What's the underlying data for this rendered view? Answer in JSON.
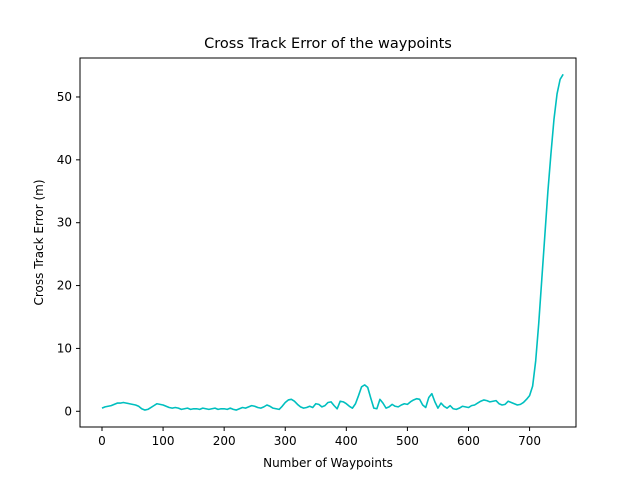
{
  "chart_data": {
    "type": "line",
    "title": "Cross Track Error of the waypoints",
    "xlabel": "Number of Waypoints",
    "ylabel": "Cross Track Error (m)",
    "xlim": [
      -36,
      776
    ],
    "ylim": [
      -2.5,
      56.2
    ],
    "xticks": [
      0,
      100,
      200,
      300,
      400,
      500,
      600,
      700
    ],
    "yticks": [
      0,
      10,
      20,
      30,
      40,
      50
    ],
    "grid": false,
    "line_color": "#00bfbf",
    "series": [
      {
        "x": [
          0,
          5,
          10,
          15,
          20,
          25,
          30,
          35,
          40,
          45,
          50,
          55,
          60,
          65,
          70,
          75,
          80,
          85,
          90,
          95,
          100,
          105,
          110,
          115,
          120,
          125,
          130,
          135,
          140,
          145,
          150,
          155,
          160,
          165,
          170,
          175,
          180,
          185,
          190,
          195,
          200,
          205,
          210,
          215,
          220,
          225,
          230,
          235,
          240,
          245,
          250,
          255,
          260,
          265,
          270,
          275,
          280,
          285,
          290,
          295,
          300,
          305,
          310,
          315,
          320,
          325,
          330,
          335,
          340,
          345,
          350,
          355,
          360,
          365,
          370,
          375,
          380,
          385,
          390,
          395,
          400,
          405,
          410,
          415,
          420,
          425,
          430,
          435,
          440,
          445,
          450,
          455,
          460,
          465,
          470,
          475,
          480,
          485,
          490,
          495,
          500,
          505,
          510,
          515,
          520,
          525,
          530,
          535,
          540,
          545,
          550,
          555,
          560,
          565,
          570,
          575,
          580,
          585,
          590,
          595,
          600,
          605,
          610,
          615,
          620,
          625,
          630,
          635,
          640,
          645,
          650,
          655,
          660,
          665,
          670,
          675,
          680,
          685,
          690,
          695,
          700,
          705,
          710,
          715,
          720,
          725,
          730,
          735,
          740,
          745,
          750,
          755
        ],
        "y": [
          0.5,
          0.7,
          0.8,
          0.9,
          1.1,
          1.3,
          1.3,
          1.4,
          1.3,
          1.2,
          1.1,
          1.0,
          0.8,
          0.4,
          0.2,
          0.3,
          0.6,
          0.9,
          1.2,
          1.1,
          1.0,
          0.8,
          0.6,
          0.5,
          0.6,
          0.5,
          0.3,
          0.4,
          0.5,
          0.3,
          0.4,
          0.4,
          0.3,
          0.5,
          0.4,
          0.3,
          0.4,
          0.5,
          0.3,
          0.4,
          0.4,
          0.3,
          0.5,
          0.3,
          0.2,
          0.4,
          0.6,
          0.5,
          0.7,
          0.9,
          0.8,
          0.6,
          0.5,
          0.7,
          1.0,
          0.8,
          0.5,
          0.4,
          0.3,
          0.8,
          1.4,
          1.8,
          1.9,
          1.6,
          1.1,
          0.7,
          0.5,
          0.6,
          0.8,
          0.6,
          1.2,
          1.1,
          0.7,
          0.9,
          1.4,
          1.5,
          0.9,
          0.4,
          1.6,
          1.5,
          1.2,
          0.8,
          0.5,
          1.2,
          2.5,
          3.9,
          4.2,
          3.8,
          2.1,
          0.5,
          0.4,
          1.9,
          1.3,
          0.5,
          0.7,
          1.1,
          0.8,
          0.7,
          1.0,
          1.2,
          1.1,
          1.5,
          1.8,
          2.0,
          1.9,
          1.0,
          0.6,
          2.2,
          2.8,
          1.5,
          0.5,
          1.3,
          0.8,
          0.5,
          0.9,
          0.4,
          0.3,
          0.5,
          0.8,
          0.7,
          0.6,
          0.9,
          1.0,
          1.3,
          1.6,
          1.8,
          1.7,
          1.5,
          1.6,
          1.7,
          1.2,
          1.0,
          1.1,
          1.6,
          1.4,
          1.2,
          1.0,
          1.1,
          1.4,
          1.9,
          2.5,
          4.0,
          8.0,
          14.0,
          21.0,
          28.0,
          35.0,
          41.0,
          46.5,
          50.5,
          52.8,
          53.6
        ]
      }
    ]
  }
}
